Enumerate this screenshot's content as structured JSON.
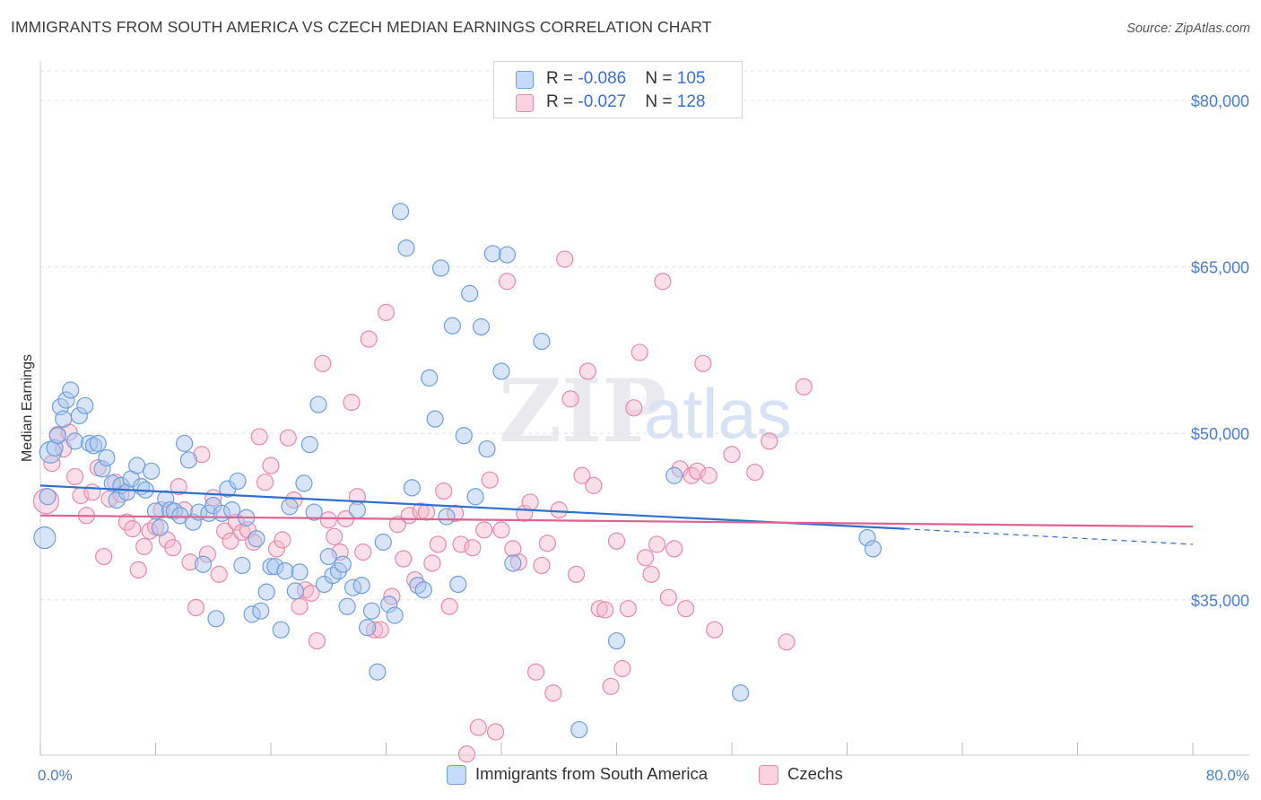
{
  "title": "IMMIGRANTS FROM SOUTH AMERICA VS CZECH MEDIAN EARNINGS CORRELATION CHART",
  "source": "Source: ZipAtlas.com",
  "watermark": {
    "zip": "ZIP",
    "atlas": "atlas"
  },
  "colors": {
    "blue_fill": "#a9c6ef",
    "blue_stroke": "#6f9fde",
    "blue_line": "#2f6fcf",
    "pink_fill": "#f5b8cc",
    "pink_stroke": "#e98aaa",
    "pink_line": "#e06090",
    "axis_label": "#4a7fcc",
    "grid": "#dddddd"
  },
  "legend": {
    "rows": [
      {
        "r_label": "R = ",
        "r_value": "-0.086",
        "n_label": "N = ",
        "n_value": "105",
        "color": "#a9c6ef",
        "border": "#6f9fde"
      },
      {
        "r_label": "R = ",
        "r_value": "-0.027",
        "n_label": "N = ",
        "n_value": "128",
        "color": "#f5b8cc",
        "border": "#e98aaa"
      }
    ]
  },
  "bottom_legend": [
    {
      "label": "Immigrants from South America",
      "color": "#a9c6ef",
      "border": "#6f9fde"
    },
    {
      "label": "Czechs",
      "color": "#f5b8cc",
      "border": "#e98aaa"
    }
  ],
  "chart_data": {
    "type": "scatter",
    "title": "IMMIGRANTS FROM SOUTH AMERICA VS CZECH MEDIAN EARNINGS CORRELATION CHART",
    "xlabel": "",
    "ylabel": "Median Earnings",
    "xlim": [
      0,
      80
    ],
    "ylim": [
      21000,
      83000
    ],
    "x_tick_labels": [
      "0.0%",
      "80.0%"
    ],
    "y_ticks": [
      35000,
      50000,
      65000,
      80000
    ],
    "y_tick_labels": [
      "$35,000",
      "$50,000",
      "$65,000",
      "$80,000"
    ],
    "grid": true,
    "series": [
      {
        "name": "Immigrants from South America",
        "color": "#a9c6ef",
        "trend": {
          "x": [
            0,
            60
          ],
          "y": [
            45300,
            41400
          ],
          "dashed_to": [
            80,
            40000
          ]
        },
        "points": [
          [
            0.3,
            40600
          ],
          [
            0.5,
            44300
          ],
          [
            0.7,
            48300
          ],
          [
            1.0,
            48700
          ],
          [
            1.2,
            49800
          ],
          [
            1.4,
            52400
          ],
          [
            1.6,
            51300
          ],
          [
            1.8,
            53000
          ],
          [
            2.1,
            53900
          ],
          [
            2.4,
            49300
          ],
          [
            2.7,
            51600
          ],
          [
            3.1,
            52500
          ],
          [
            3.4,
            49100
          ],
          [
            3.7,
            48900
          ],
          [
            4.0,
            49100
          ],
          [
            4.3,
            46800
          ],
          [
            4.6,
            47800
          ],
          [
            5.0,
            45500
          ],
          [
            5.3,
            44000
          ],
          [
            5.6,
            45300
          ],
          [
            6.0,
            44700
          ],
          [
            6.3,
            45900
          ],
          [
            6.7,
            47100
          ],
          [
            7.0,
            45200
          ],
          [
            7.3,
            44900
          ],
          [
            7.7,
            46600
          ],
          [
            8.0,
            43000
          ],
          [
            8.3,
            41500
          ],
          [
            8.7,
            44100
          ],
          [
            9.0,
            43100
          ],
          [
            9.3,
            43000
          ],
          [
            9.7,
            42600
          ],
          [
            10.0,
            49100
          ],
          [
            10.3,
            47600
          ],
          [
            10.6,
            42000
          ],
          [
            11.0,
            42900
          ],
          [
            11.3,
            38200
          ],
          [
            11.7,
            42800
          ],
          [
            12.0,
            43500
          ],
          [
            12.2,
            33300
          ],
          [
            12.6,
            42800
          ],
          [
            13.0,
            45000
          ],
          [
            13.3,
            43100
          ],
          [
            13.7,
            45700
          ],
          [
            14.0,
            38100
          ],
          [
            14.3,
            42400
          ],
          [
            14.7,
            33700
          ],
          [
            15.0,
            40500
          ],
          [
            15.3,
            34000
          ],
          [
            15.7,
            35700
          ],
          [
            16.0,
            38000
          ],
          [
            16.3,
            38000
          ],
          [
            16.7,
            32300
          ],
          [
            17.0,
            37600
          ],
          [
            17.3,
            43400
          ],
          [
            17.7,
            35800
          ],
          [
            18.0,
            37500
          ],
          [
            18.3,
            45500
          ],
          [
            18.7,
            49000
          ],
          [
            19.0,
            42900
          ],
          [
            19.3,
            52600
          ],
          [
            19.7,
            36400
          ],
          [
            20.0,
            38900
          ],
          [
            20.3,
            37200
          ],
          [
            20.7,
            37600
          ],
          [
            21.0,
            38200
          ],
          [
            21.3,
            34400
          ],
          [
            21.7,
            36100
          ],
          [
            22.0,
            43100
          ],
          [
            22.3,
            36300
          ],
          [
            22.7,
            32500
          ],
          [
            23.0,
            34000
          ],
          [
            23.4,
            28500
          ],
          [
            23.8,
            40200
          ],
          [
            24.2,
            34600
          ],
          [
            24.6,
            33600
          ],
          [
            25.0,
            70000
          ],
          [
            25.4,
            66700
          ],
          [
            25.8,
            45100
          ],
          [
            26.2,
            36300
          ],
          [
            26.6,
            35900
          ],
          [
            27.0,
            55000
          ],
          [
            27.4,
            51300
          ],
          [
            27.8,
            64900
          ],
          [
            28.2,
            42500
          ],
          [
            28.6,
            59700
          ],
          [
            29.0,
            36400
          ],
          [
            29.4,
            49800
          ],
          [
            29.8,
            62600
          ],
          [
            30.2,
            44300
          ],
          [
            30.6,
            59600
          ],
          [
            31.0,
            48600
          ],
          [
            31.4,
            66200
          ],
          [
            32.0,
            55600
          ],
          [
            32.4,
            66100
          ],
          [
            32.8,
            38300
          ],
          [
            34.8,
            58300
          ],
          [
            37.4,
            23300
          ],
          [
            40.0,
            31300
          ],
          [
            44.0,
            46200
          ],
          [
            48.6,
            26600
          ],
          [
            57.4,
            40600
          ],
          [
            57.8,
            39600
          ]
        ]
      },
      {
        "name": "Czechs",
        "color": "#f5b8cc",
        "trend": {
          "x": [
            0,
            80
          ],
          "y": [
            42600,
            41600
          ]
        },
        "points": [
          [
            0.4,
            43900
          ],
          [
            0.8,
            47300
          ],
          [
            1.2,
            49900
          ],
          [
            1.6,
            48600
          ],
          [
            2.0,
            50100
          ],
          [
            2.4,
            46100
          ],
          [
            2.8,
            44400
          ],
          [
            3.2,
            42600
          ],
          [
            3.6,
            44700
          ],
          [
            4.0,
            46900
          ],
          [
            4.4,
            38900
          ],
          [
            4.8,
            44100
          ],
          [
            5.2,
            45600
          ],
          [
            5.6,
            44500
          ],
          [
            6.0,
            42000
          ],
          [
            6.4,
            41400
          ],
          [
            6.8,
            37700
          ],
          [
            7.2,
            39800
          ],
          [
            7.6,
            41200
          ],
          [
            8.0,
            41600
          ],
          [
            8.4,
            43100
          ],
          [
            8.8,
            40400
          ],
          [
            9.2,
            39700
          ],
          [
            9.6,
            45200
          ],
          [
            10.0,
            43100
          ],
          [
            10.4,
            38400
          ],
          [
            10.8,
            34300
          ],
          [
            11.2,
            48100
          ],
          [
            11.6,
            39100
          ],
          [
            12.0,
            44200
          ],
          [
            12.4,
            37300
          ],
          [
            12.8,
            41200
          ],
          [
            13.2,
            40300
          ],
          [
            13.6,
            42000
          ],
          [
            14.0,
            41100
          ],
          [
            14.4,
            41300
          ],
          [
            14.8,
            40200
          ],
          [
            15.2,
            49700
          ],
          [
            15.6,
            45600
          ],
          [
            16.0,
            47100
          ],
          [
            16.4,
            39600
          ],
          [
            16.8,
            40400
          ],
          [
            17.2,
            49600
          ],
          [
            17.6,
            44000
          ],
          [
            18.0,
            34400
          ],
          [
            18.4,
            35900
          ],
          [
            18.8,
            35600
          ],
          [
            19.2,
            31300
          ],
          [
            19.6,
            56300
          ],
          [
            20.0,
            42200
          ],
          [
            20.4,
            40700
          ],
          [
            20.8,
            39300
          ],
          [
            21.2,
            42300
          ],
          [
            21.6,
            52800
          ],
          [
            22.0,
            44300
          ],
          [
            22.4,
            39300
          ],
          [
            22.8,
            58500
          ],
          [
            23.2,
            32300
          ],
          [
            23.6,
            32300
          ],
          [
            24.0,
            60900
          ],
          [
            24.4,
            35300
          ],
          [
            24.8,
            41800
          ],
          [
            25.2,
            38700
          ],
          [
            25.6,
            42600
          ],
          [
            26.0,
            36800
          ],
          [
            26.4,
            43000
          ],
          [
            26.8,
            42900
          ],
          [
            27.2,
            38300
          ],
          [
            27.6,
            40000
          ],
          [
            28.0,
            44800
          ],
          [
            28.4,
            34400
          ],
          [
            28.8,
            42800
          ],
          [
            29.2,
            40000
          ],
          [
            29.6,
            21100
          ],
          [
            30.0,
            39700
          ],
          [
            30.4,
            23500
          ],
          [
            30.8,
            41300
          ],
          [
            31.2,
            45800
          ],
          [
            31.6,
            23100
          ],
          [
            32.0,
            41300
          ],
          [
            32.4,
            63700
          ],
          [
            32.8,
            39600
          ],
          [
            33.2,
            38400
          ],
          [
            33.6,
            42800
          ],
          [
            34.0,
            43800
          ],
          [
            34.4,
            28500
          ],
          [
            34.8,
            38100
          ],
          [
            35.2,
            40100
          ],
          [
            35.6,
            26600
          ],
          [
            36.0,
            43100
          ],
          [
            36.4,
            65700
          ],
          [
            36.8,
            53100
          ],
          [
            37.2,
            37300
          ],
          [
            37.6,
            46200
          ],
          [
            38.0,
            55600
          ],
          [
            38.4,
            45300
          ],
          [
            38.8,
            34200
          ],
          [
            39.2,
            34100
          ],
          [
            39.6,
            27200
          ],
          [
            40.0,
            40300
          ],
          [
            40.4,
            28800
          ],
          [
            40.8,
            34200
          ],
          [
            41.2,
            52300
          ],
          [
            41.6,
            57300
          ],
          [
            42.0,
            38800
          ],
          [
            42.4,
            37300
          ],
          [
            42.8,
            40000
          ],
          [
            43.2,
            63700
          ],
          [
            43.6,
            35200
          ],
          [
            44.0,
            39600
          ],
          [
            44.4,
            46800
          ],
          [
            44.8,
            34200
          ],
          [
            45.2,
            46200
          ],
          [
            45.6,
            46600
          ],
          [
            46.0,
            56300
          ],
          [
            46.4,
            46200
          ],
          [
            46.8,
            32300
          ],
          [
            48.0,
            48100
          ],
          [
            49.6,
            46500
          ],
          [
            50.6,
            49300
          ],
          [
            51.8,
            31200
          ],
          [
            53.0,
            54200
          ]
        ]
      }
    ]
  },
  "y_axis_label": "Median Earnings",
  "x_axis": {
    "min_label": "0.0%",
    "max_label": "80.0%"
  }
}
